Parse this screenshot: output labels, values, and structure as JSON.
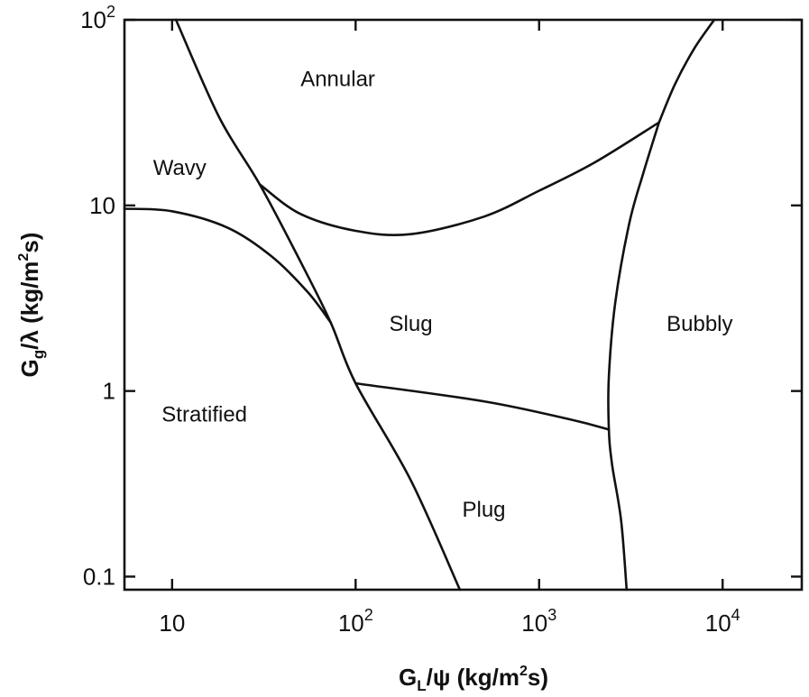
{
  "chart_data": {
    "type": "line",
    "x_scale": "log",
    "y_scale": "log",
    "xlim": [
      5.5,
      27000
    ],
    "ylim": [
      0.085,
      100
    ],
    "grid": false,
    "legend": "none",
    "xlabel": {
      "main": "G",
      "sub": "L",
      "rest": "/ψ  (kg/m",
      "sup": "2",
      "end": "s)"
    },
    "ylabel": {
      "main": "G",
      "sub": "g",
      "rest": "/λ  (kg/m",
      "sup": "2",
      "end": "s)"
    },
    "x_ticks": [
      {
        "value": 10,
        "base": "10",
        "exp": ""
      },
      {
        "value": 100,
        "base": "10",
        "exp": "2"
      },
      {
        "value": 1000,
        "base": "10",
        "exp": "3"
      },
      {
        "value": 10000,
        "base": "10",
        "exp": "4"
      }
    ],
    "y_ticks": [
      {
        "value": 0.1,
        "base": "0.1",
        "exp": ""
      },
      {
        "value": 1,
        "base": "1",
        "exp": ""
      },
      {
        "value": 10,
        "base": "10",
        "exp": ""
      },
      {
        "value": 100,
        "base": "10",
        "exp": "2"
      }
    ],
    "regions": [
      {
        "name": "Annular",
        "x": 80,
        "y": 48
      },
      {
        "name": "Wavy",
        "x": 11,
        "y": 16
      },
      {
        "name": "Slug",
        "x": 200,
        "y": 2.3
      },
      {
        "name": "Bubbly",
        "x": 7500,
        "y": 2.3
      },
      {
        "name": "Stratified",
        "x": 15,
        "y": 0.75
      },
      {
        "name": "Plug",
        "x": 500,
        "y": 0.23
      }
    ],
    "boundaries": [
      {
        "name": "stratified-slug-plug",
        "points": [
          [
            10.5,
            100
          ],
          [
            18,
            30
          ],
          [
            30,
            13
          ],
          [
            50,
            5
          ],
          [
            73,
            2.35
          ],
          [
            100,
            1.1
          ],
          [
            200,
            0.33
          ],
          [
            370,
            0.085
          ]
        ]
      },
      {
        "name": "wavy-stratified",
        "points": [
          [
            5.5,
            9.6
          ],
          [
            10,
            9.3
          ],
          [
            20,
            7.6
          ],
          [
            35,
            5.3
          ],
          [
            55,
            3.4
          ],
          [
            73,
            2.35
          ]
        ]
      },
      {
        "name": "annular-slug",
        "points": [
          [
            30,
            13
          ],
          [
            50,
            9
          ],
          [
            100,
            7.3
          ],
          [
            200,
            7.0
          ],
          [
            500,
            8.7
          ],
          [
            1000,
            12
          ],
          [
            2000,
            17
          ],
          [
            4500,
            28
          ]
        ]
      },
      {
        "name": "slug-plug",
        "points": [
          [
            100,
            1.1
          ],
          [
            500,
            0.88
          ],
          [
            1500,
            0.7
          ],
          [
            2400,
            0.62
          ]
        ]
      },
      {
        "name": "bubbly-upper",
        "points": [
          [
            4500,
            28
          ],
          [
            5500,
            45
          ],
          [
            7000,
            70
          ],
          [
            9000,
            100
          ]
        ]
      },
      {
        "name": "bubbly-lower",
        "points": [
          [
            4500,
            28
          ],
          [
            3700,
            15
          ],
          [
            3100,
            8
          ],
          [
            2600,
            3
          ],
          [
            2400,
            1.2
          ],
          [
            2400,
            0.62
          ],
          [
            2500,
            0.4
          ],
          [
            2800,
            0.2
          ],
          [
            3000,
            0.085
          ]
        ]
      }
    ]
  }
}
